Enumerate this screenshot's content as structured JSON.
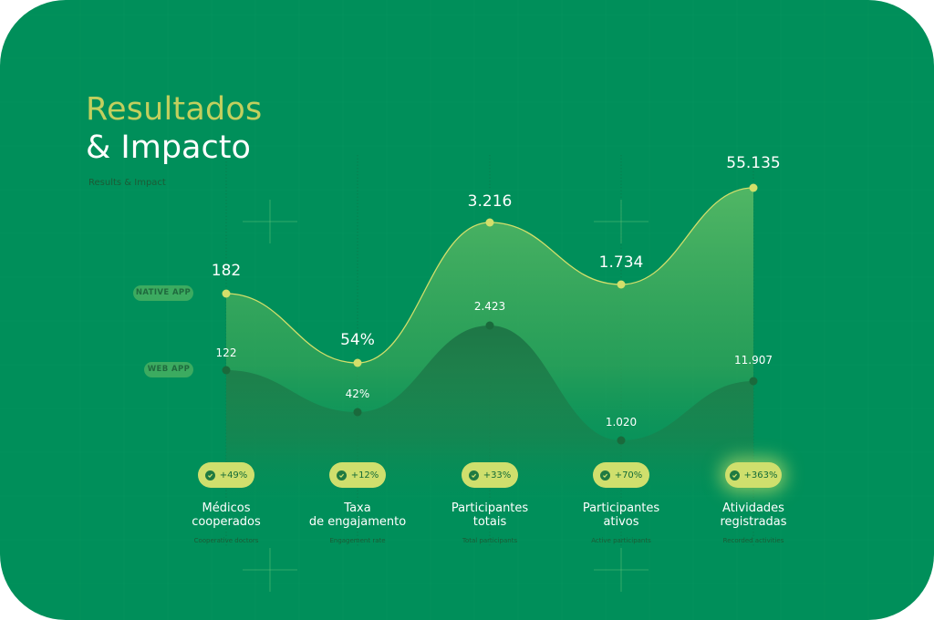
{
  "title": {
    "line1": "Resultados",
    "line2": "& Impacto",
    "subtitle": "Results & Impact"
  },
  "legend": {
    "native": "NATIVE APP",
    "web": "WEB APP"
  },
  "colors": {
    "background": "#008f5a",
    "native_line": "#d3df6a",
    "native_area": "#3fa85c",
    "web_area": "#1f7d4a",
    "badge": "#cfdf6d",
    "label_dark": "#1c5a35"
  },
  "chart_data": {
    "type": "area",
    "categories": [
      "Médicos cooperados",
      "Taxa de engajamento",
      "Participantes totais",
      "Participantes ativos",
      "Atividades registradas"
    ],
    "series": [
      {
        "name": "NATIVE APP",
        "values": [
          "182",
          "54%",
          "3.216",
          "1.734",
          "55.135"
        ]
      },
      {
        "name": "WEB APP",
        "values": [
          "122",
          "42%",
          "2.423",
          "1.020",
          "11.907"
        ]
      }
    ],
    "growth": [
      "+49%",
      "+12%",
      "+33%",
      "+70%",
      "+363%"
    ],
    "subtitles": [
      "Cooperative doctors",
      "Engagement rate",
      "Total participants",
      "Active participants",
      "Recorded activities"
    ],
    "grid": true
  }
}
